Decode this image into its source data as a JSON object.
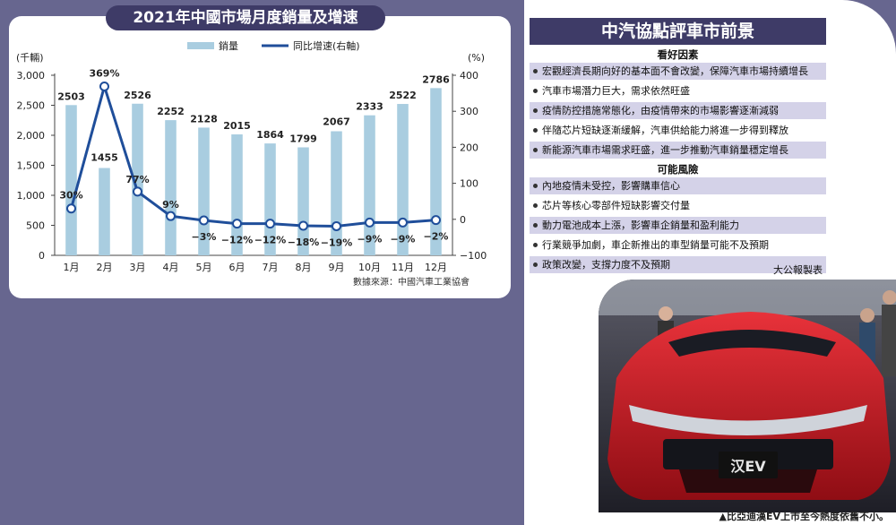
{
  "chart_data": {
    "type": "bar+line",
    "title": "2021年中國市場月度銷量及增速",
    "categories": [
      "1月",
      "2月",
      "3月",
      "4月",
      "5月",
      "6月",
      "7月",
      "8月",
      "9月",
      "10月",
      "11月",
      "12月"
    ],
    "series": [
      {
        "name": "銷量",
        "type": "bar",
        "axis": "left",
        "values": [
          2503,
          1455,
          2526,
          2252,
          2128,
          2015,
          1864,
          1799,
          2067,
          2333,
          2522,
          2786
        ],
        "labels": [
          "2503",
          "1455",
          "2526",
          "2252",
          "2128",
          "2015",
          "1864",
          "1799",
          "2067",
          "2333",
          "2522",
          "2786"
        ]
      },
      {
        "name": "同比增速(右軸)",
        "type": "line",
        "axis": "right",
        "values": [
          30,
          369,
          77,
          9,
          -3,
          -12,
          -12,
          -18,
          -19,
          -9,
          -9,
          -2
        ],
        "labels": [
          "30%",
          "369%",
          "77%",
          "9%",
          "−3%",
          "−12%",
          "−12%",
          "−18%",
          "−19%",
          "−9%",
          "−9%",
          "−2%"
        ]
      }
    ],
    "y_left": {
      "unit": "(千輛)",
      "ticks": [
        "0",
        "500",
        "1,000",
        "1,500",
        "2,000",
        "2,500",
        "3,000"
      ],
      "ylim": [
        0,
        3000
      ]
    },
    "y_right": {
      "unit": "(%)",
      "ticks": [
        "−100",
        "0",
        "100",
        "200",
        "300",
        "400"
      ],
      "ylim": [
        -100,
        400
      ]
    },
    "legend_position": "top-center",
    "source": "數據來源：中國汽車工業協會",
    "colors": {
      "bar": "#a9cde0",
      "line": "#1f4e9a",
      "marker_fill": "#ffffff"
    }
  },
  "assoc": {
    "title": "中汽協點評車市前景",
    "good_header": "看好因素",
    "good": [
      "宏觀經濟長期向好的基本面不會改變，保障汽車市場持續增長",
      "汽車市場潛力巨大，需求依然旺盛",
      "疫情防控措施常態化，由疫情帶來的市場影響逐漸減弱",
      "伴隨芯片短缺逐漸緩解，汽車供給能力將進一步得到釋放",
      "新能源汽車市場需求旺盛，進一步推動汽車銷量穩定增長"
    ],
    "risk_header": "可能風險",
    "risks": [
      "內地疫情未受控，影響購車信心",
      "芯片等核心零部件短缺影響交付量",
      "動力電池成本上漲，影響車企銷量和盈利能力",
      "行業競爭加劇，車企新推出的車型銷量可能不及預期",
      "政策改變，支撐力度不及預期"
    ],
    "credit": "大公報製表"
  },
  "photo": {
    "plate": "汉EV",
    "caption": "▲比亞迪漢EV上市至今熱度依舊不小。"
  }
}
